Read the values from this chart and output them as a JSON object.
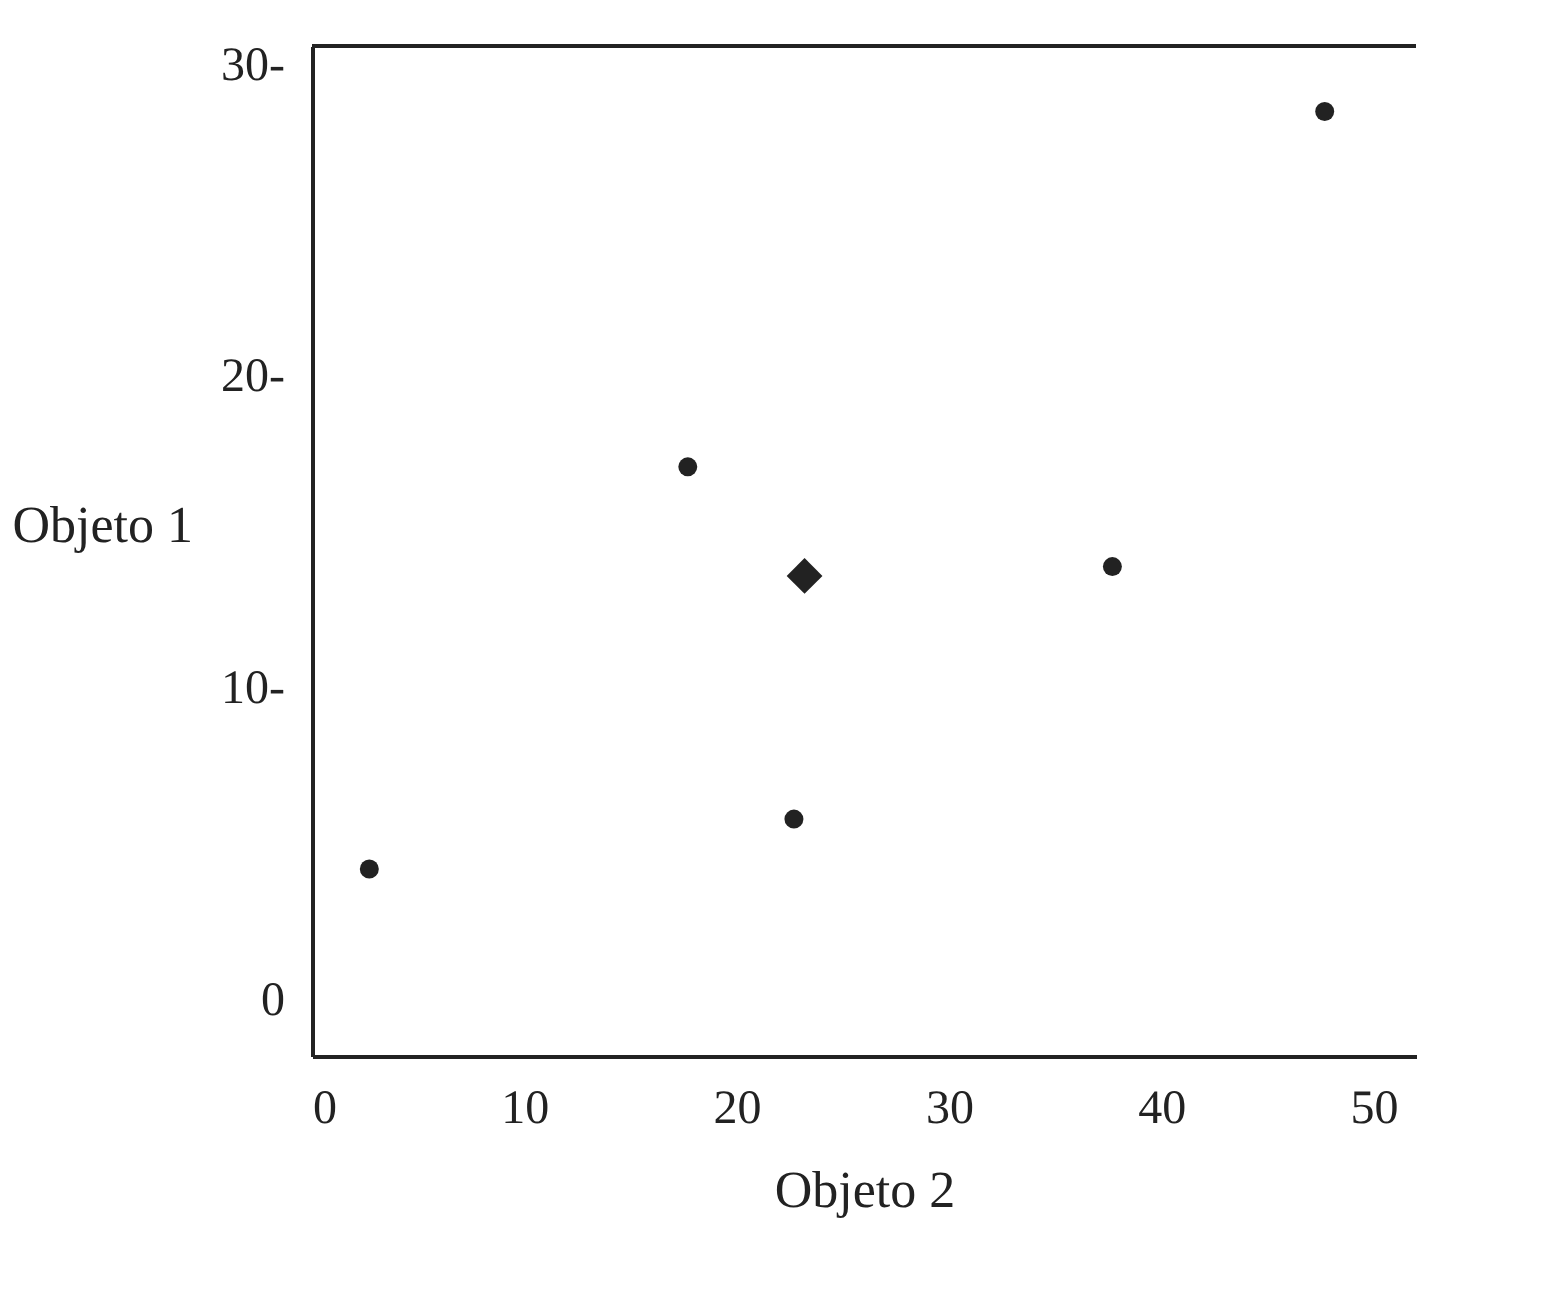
{
  "chart_data": {
    "type": "scatter",
    "xlabel": "Objeto 2",
    "ylabel": "Objeto 1",
    "xlim": [
      0,
      52
    ],
    "ylim": [
      -1.8,
      30.6
    ],
    "xticks": [
      0,
      10,
      20,
      30,
      40,
      50
    ],
    "yticks": [
      {
        "value": 0,
        "label": "0"
      },
      {
        "value": 10,
        "label": "10-"
      },
      {
        "value": 20,
        "label": "20-"
      },
      {
        "value": 30,
        "label": "30-"
      }
    ],
    "grid": false,
    "series": [
      {
        "color": "#222222",
        "marker": "circle",
        "x": [
          2.7,
          17.7,
          22.7,
          37.7,
          47.7
        ],
        "values": [
          4.2,
          17.1,
          5.8,
          13.9,
          28.5
        ]
      },
      {
        "color": "#222222",
        "marker": "diamond",
        "x": [
          23.2
        ],
        "values": [
          13.6
        ]
      }
    ]
  }
}
